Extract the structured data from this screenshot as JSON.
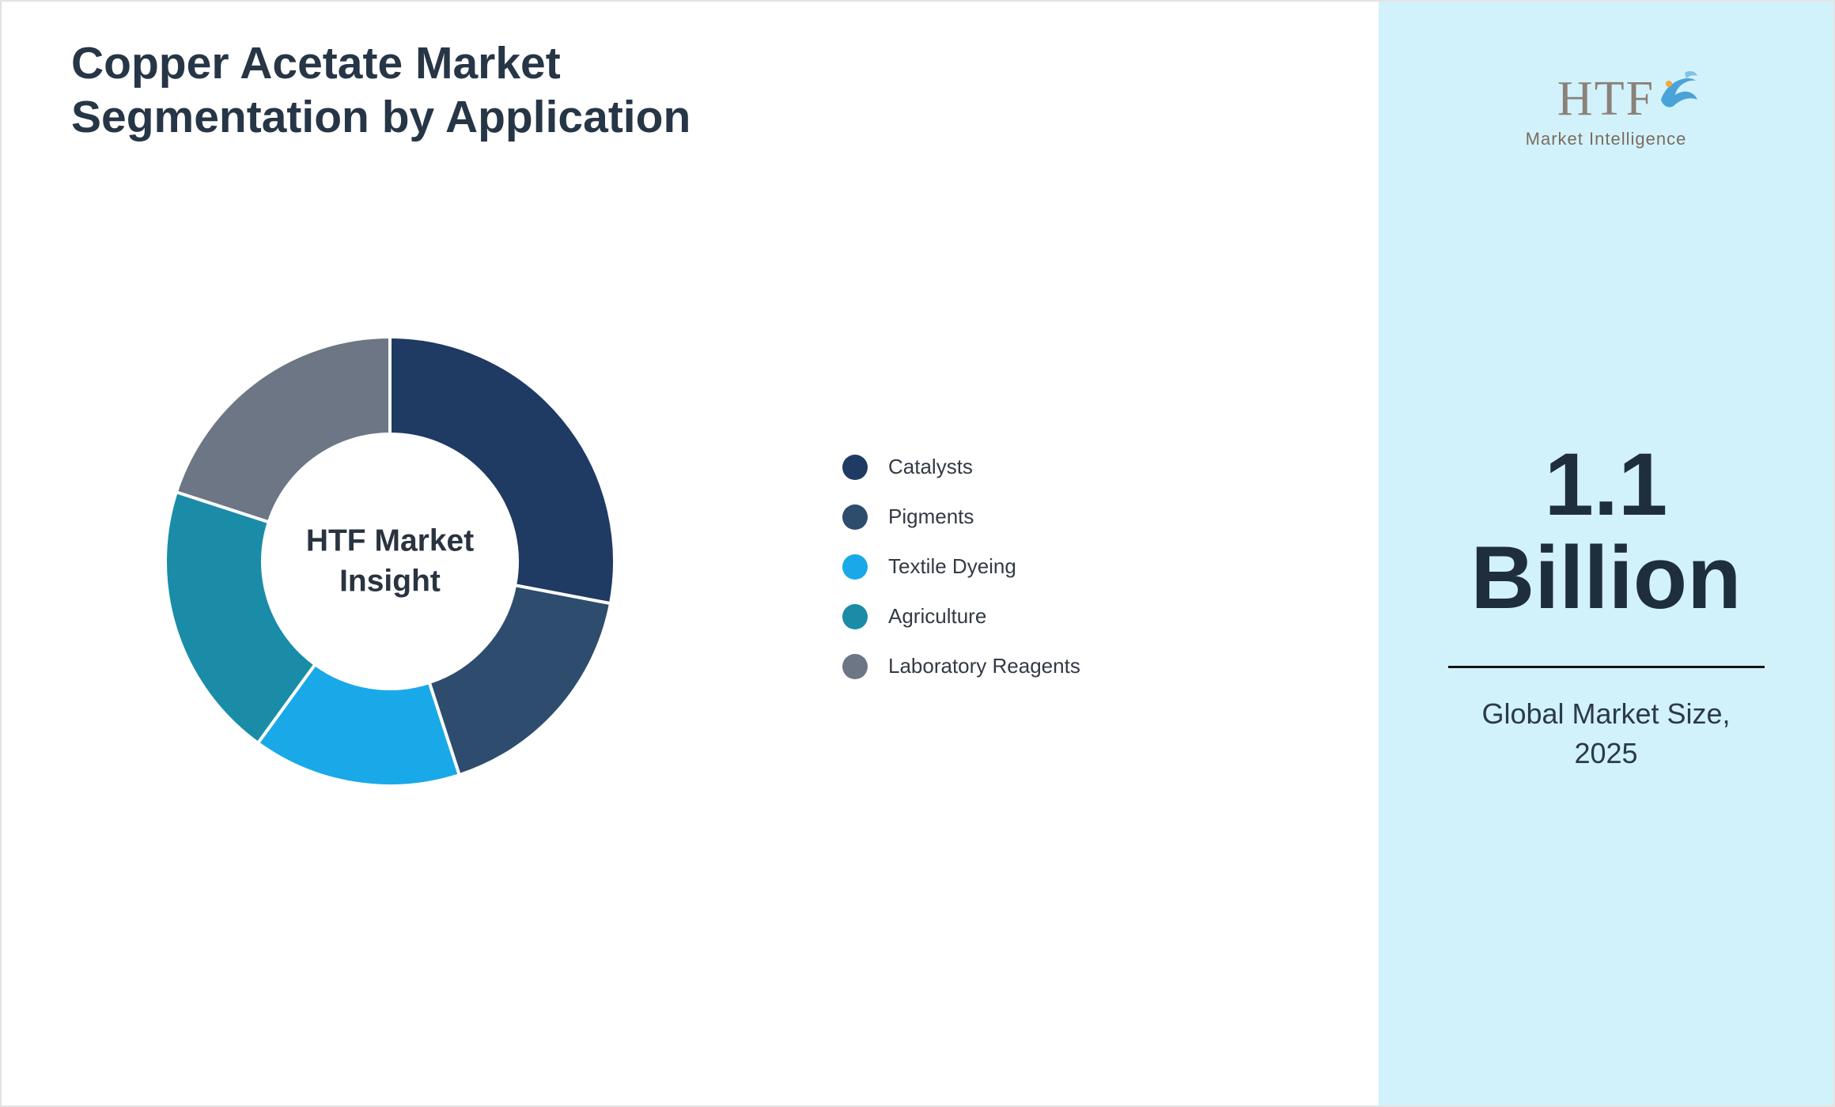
{
  "header": {
    "title": "Copper Acetate Market Segmentation by Application"
  },
  "chart_data": {
    "type": "pie",
    "donut": true,
    "title": "Copper Acetate Market Segmentation by Application",
    "center_label": "HTF Market Insight",
    "categories": [
      "Catalysts",
      "Pigments",
      "Textile Dyeing",
      "Agriculture",
      "Laboratory Reagents"
    ],
    "values": [
      28,
      17,
      15,
      20,
      20
    ],
    "colors": [
      "#1f3a63",
      "#2e4d6e",
      "#1aa9e8",
      "#1a8ca8",
      "#6d7684"
    ],
    "legend_position": "right",
    "start_angle_deg": 0,
    "direction": "clockwise"
  },
  "sidebar": {
    "logo_text": "HTF",
    "logo_subtitle": "Market Intelligence",
    "market_size_value": "1.1 Billion",
    "market_size_line1": "1.1",
    "market_size_line2": "Billion",
    "caption": "Global Market Size, 2025",
    "background_color": "#d2f2fb"
  },
  "colors": {
    "title_text": "#273646",
    "big_number_text": "#1f2e3d",
    "divider": "#141414",
    "legend_text": "#333a45",
    "logo_blue": "#4aa3d8"
  }
}
